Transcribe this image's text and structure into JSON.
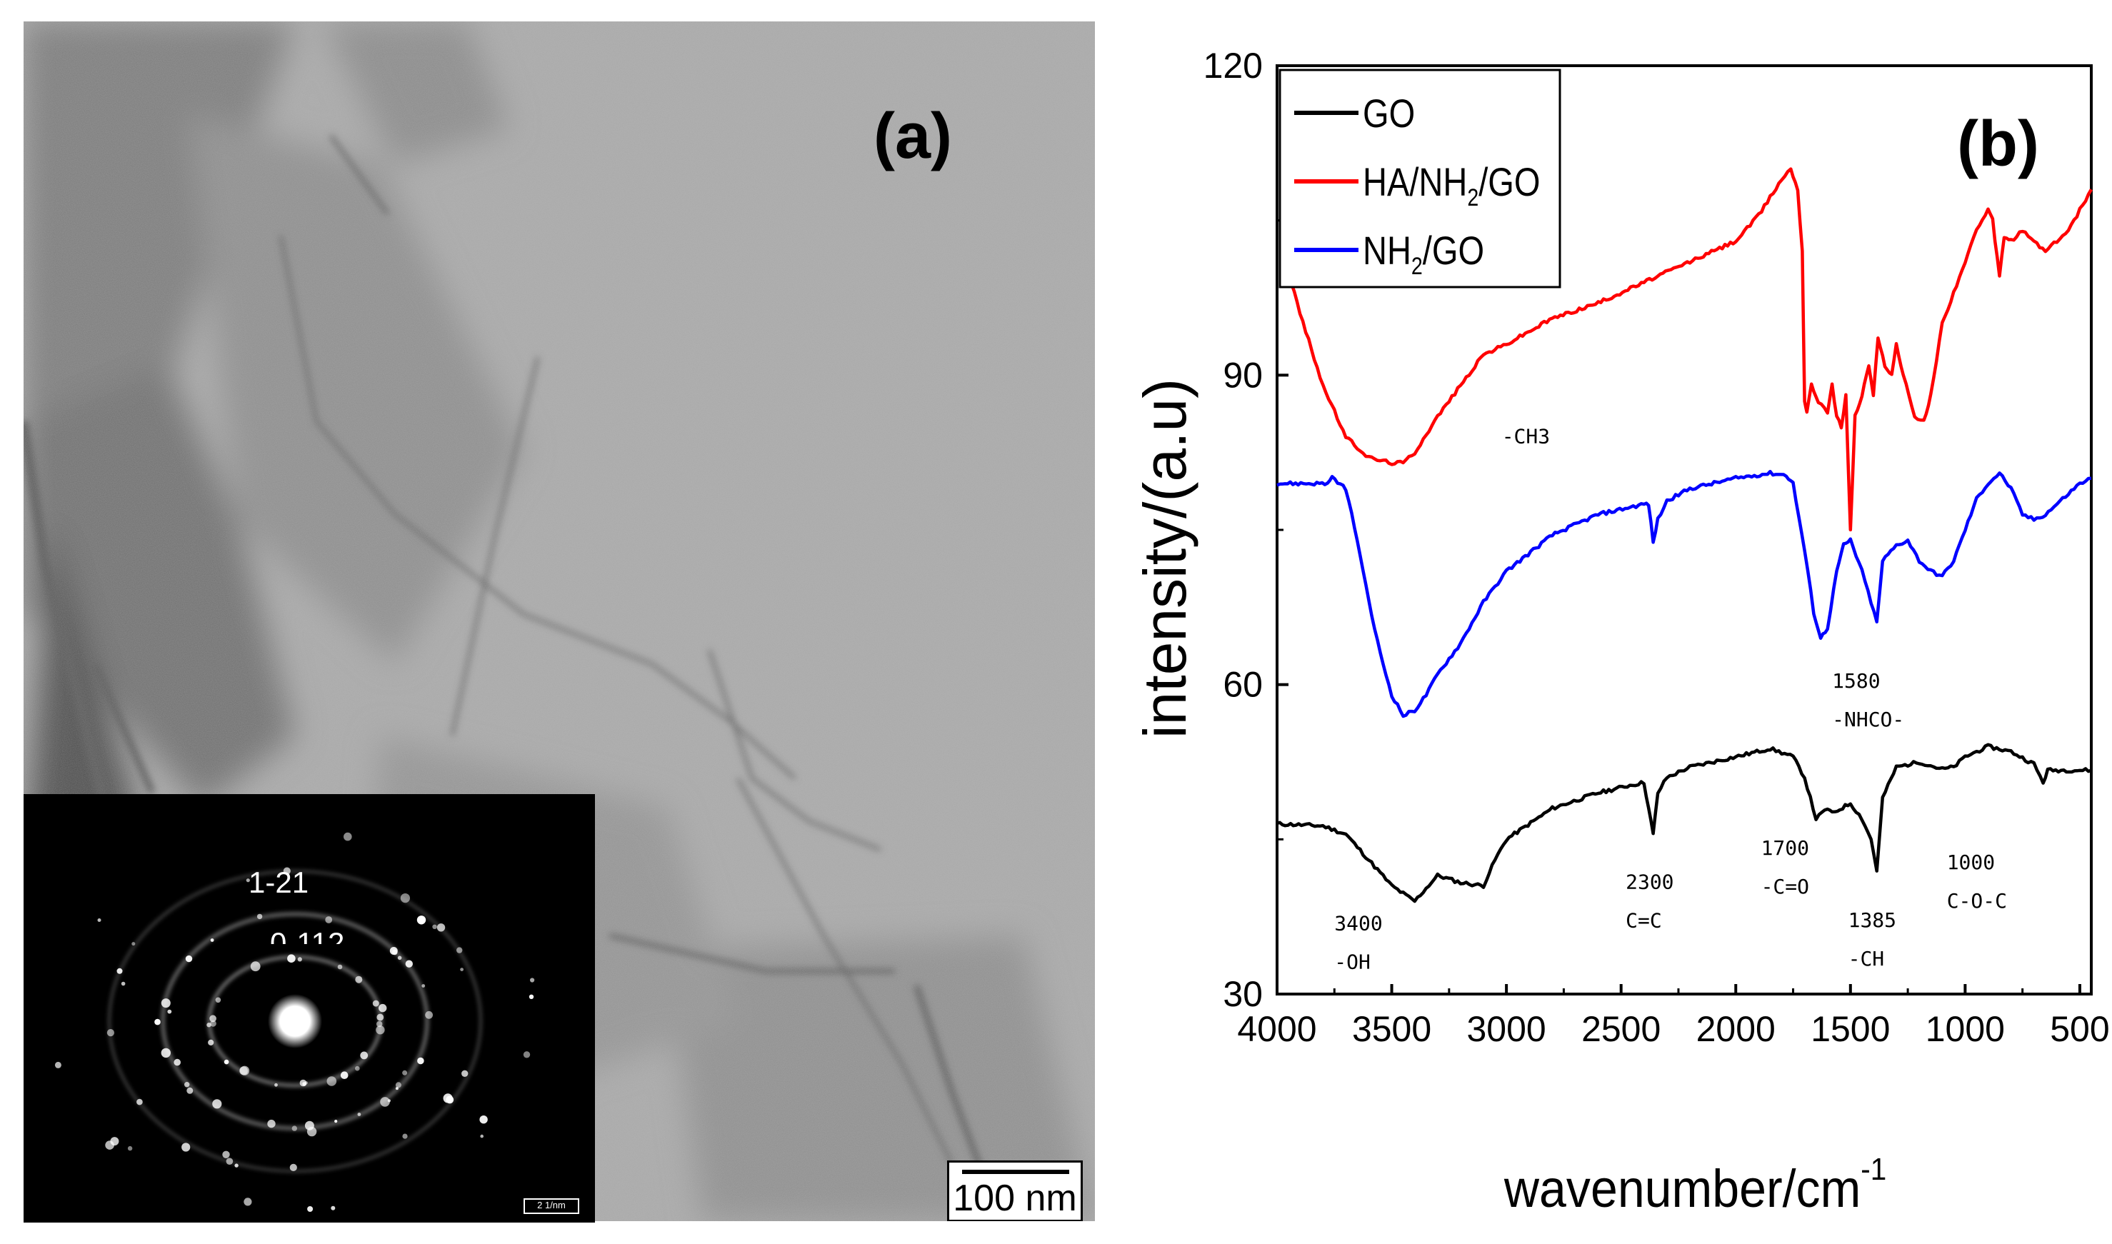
{
  "panel_a": {
    "label": "(a)",
    "scale_bar_text": "100 nm",
    "inset_labels": [
      "1-21",
      "0-112"
    ],
    "inset_scale_text": "2 1/nm"
  },
  "chart_data": {
    "type": "line",
    "panel_label": "(b)",
    "xlabel": "wavenumber/cm",
    "xlabel_superscript": "-1",
    "ylabel": "intensity/(a.u)",
    "xlim": [
      4000,
      450
    ],
    "ylim": [
      30,
      120
    ],
    "xticks": [
      4000,
      3500,
      3000,
      2500,
      2000,
      1500,
      1000,
      500
    ],
    "yticks": [
      30,
      60,
      90,
      120
    ],
    "legend": {
      "placement": "top-left",
      "entries": [
        {
          "name": "GO",
          "color": "#000000"
        },
        {
          "name": "HA/NH",
          "sub": "2",
          "suffix": "/GO",
          "color": "#ff0000"
        },
        {
          "name": "NH",
          "sub": "2",
          "suffix": "/GO",
          "color": "#0000ff"
        }
      ]
    },
    "series": [
      {
        "name": "GO",
        "color": "#000000",
        "points": [
          [
            4000,
            46.5
          ],
          [
            3800,
            46.3
          ],
          [
            3700,
            45.5
          ],
          [
            3600,
            43
          ],
          [
            3500,
            40.5
          ],
          [
            3400,
            39
          ],
          [
            3300,
            41.5
          ],
          [
            3200,
            40.8
          ],
          [
            3100,
            40.5
          ],
          [
            3050,
            43
          ],
          [
            3000,
            45
          ],
          [
            2800,
            48
          ],
          [
            2600,
            49.5
          ],
          [
            2450,
            50.3
          ],
          [
            2400,
            50.5
          ],
          [
            2380,
            48
          ],
          [
            2360,
            45.5
          ],
          [
            2340,
            49.5
          ],
          [
            2300,
            51
          ],
          [
            2200,
            52
          ],
          [
            2000,
            53
          ],
          [
            1850,
            53.8
          ],
          [
            1750,
            53
          ],
          [
            1700,
            51
          ],
          [
            1650,
            47
          ],
          [
            1600,
            48
          ],
          [
            1580,
            47.5
          ],
          [
            1500,
            48.5
          ],
          [
            1450,
            47
          ],
          [
            1410,
            45
          ],
          [
            1385,
            42
          ],
          [
            1360,
            49
          ],
          [
            1300,
            52
          ],
          [
            1200,
            52.5
          ],
          [
            1100,
            51.8
          ],
          [
            1050,
            52
          ],
          [
            1000,
            53
          ],
          [
            900,
            54
          ],
          [
            800,
            53.5
          ],
          [
            700,
            52.3
          ],
          [
            660,
            50.5
          ],
          [
            640,
            51.7
          ],
          [
            500,
            51.7
          ],
          [
            450,
            51.7
          ]
        ]
      },
      {
        "name": "HA/NH2/GO",
        "color": "#ff0000",
        "points": [
          [
            3950,
            100
          ],
          [
            3900,
            96
          ],
          [
            3800,
            89
          ],
          [
            3700,
            84
          ],
          [
            3600,
            82
          ],
          [
            3500,
            81.5
          ],
          [
            3450,
            81.5
          ],
          [
            3400,
            82.5
          ],
          [
            3300,
            86
          ],
          [
            3200,
            89
          ],
          [
            3100,
            92
          ],
          [
            3000,
            93
          ],
          [
            2800,
            95.5
          ],
          [
            2600,
            97
          ],
          [
            2400,
            99
          ],
          [
            2200,
            101
          ],
          [
            2000,
            103
          ],
          [
            1900,
            105.5
          ],
          [
            1800,
            109
          ],
          [
            1760,
            110
          ],
          [
            1730,
            108
          ],
          [
            1710,
            102
          ],
          [
            1700,
            87.5
          ],
          [
            1690,
            86.5
          ],
          [
            1670,
            89
          ],
          [
            1640,
            87.5
          ],
          [
            1600,
            86.5
          ],
          [
            1580,
            89
          ],
          [
            1560,
            86
          ],
          [
            1540,
            85
          ],
          [
            1520,
            88
          ],
          [
            1500,
            75
          ],
          [
            1480,
            86
          ],
          [
            1450,
            88
          ],
          [
            1420,
            91
          ],
          [
            1400,
            88
          ],
          [
            1380,
            93.5
          ],
          [
            1350,
            91
          ],
          [
            1320,
            90
          ],
          [
            1300,
            93
          ],
          [
            1270,
            90
          ],
          [
            1220,
            86
          ],
          [
            1180,
            85.5
          ],
          [
            1150,
            88
          ],
          [
            1100,
            95
          ],
          [
            1000,
            101
          ],
          [
            950,
            104
          ],
          [
            900,
            106
          ],
          [
            880,
            105
          ],
          [
            850,
            99.5
          ],
          [
            830,
            103.5
          ],
          [
            800,
            103
          ],
          [
            750,
            104
          ],
          [
            700,
            103
          ],
          [
            650,
            102
          ],
          [
            600,
            103
          ],
          [
            550,
            104
          ],
          [
            500,
            106
          ],
          [
            450,
            108
          ]
        ]
      },
      {
        "name": "NH2/GO",
        "color": "#0000ff",
        "points": [
          [
            4000,
            79.5
          ],
          [
            3850,
            79.5
          ],
          [
            3780,
            79.5
          ],
          [
            3760,
            80
          ],
          [
            3700,
            79
          ],
          [
            3650,
            74
          ],
          [
            3600,
            68
          ],
          [
            3550,
            63
          ],
          [
            3500,
            59
          ],
          [
            3450,
            57
          ],
          [
            3400,
            57.5
          ],
          [
            3350,
            59
          ],
          [
            3300,
            61
          ],
          [
            3200,
            64
          ],
          [
            3100,
            68
          ],
          [
            3000,
            71
          ],
          [
            2800,
            74.5
          ],
          [
            2600,
            76.5
          ],
          [
            2400,
            77.5
          ],
          [
            2380,
            77.5
          ],
          [
            2360,
            73.8
          ],
          [
            2340,
            76
          ],
          [
            2300,
            77.8
          ],
          [
            2200,
            79
          ],
          [
            2000,
            80
          ],
          [
            1850,
            80.5
          ],
          [
            1780,
            80.3
          ],
          [
            1750,
            79.5
          ],
          [
            1700,
            73
          ],
          [
            1660,
            67
          ],
          [
            1630,
            64.5
          ],
          [
            1600,
            65.5
          ],
          [
            1560,
            71
          ],
          [
            1530,
            73.5
          ],
          [
            1500,
            74
          ],
          [
            1450,
            71
          ],
          [
            1410,
            68
          ],
          [
            1385,
            66
          ],
          [
            1360,
            72
          ],
          [
            1300,
            73.5
          ],
          [
            1250,
            74
          ],
          [
            1200,
            72
          ],
          [
            1150,
            71
          ],
          [
            1100,
            70.5
          ],
          [
            1050,
            72
          ],
          [
            1000,
            75
          ],
          [
            950,
            78
          ],
          [
            900,
            79.5
          ],
          [
            850,
            80.5
          ],
          [
            800,
            79
          ],
          [
            750,
            76.5
          ],
          [
            700,
            76
          ],
          [
            650,
            76.5
          ],
          [
            600,
            77.5
          ],
          [
            550,
            78.5
          ],
          [
            500,
            79.5
          ],
          [
            450,
            80
          ]
        ]
      }
    ],
    "annotations": [
      {
        "lines": [
          "3400",
          "-OH"
        ],
        "x": 3750,
        "y": 36.2
      },
      {
        "lines": [
          "-CH3"
        ],
        "x": 3020,
        "y": 83.4
      },
      {
        "lines": [
          "2300",
          "C=C"
        ],
        "x": 2480,
        "y": 40.2
      },
      {
        "lines": [
          "1700",
          "-C=O"
        ],
        "x": 1890,
        "y": 43.5
      },
      {
        "lines": [
          "1580",
          "-NHCO-"
        ],
        "x": 1580,
        "y": 59.7
      },
      {
        "lines": [
          "1385",
          "-CH"
        ],
        "x": 1510,
        "y": 36.5
      },
      {
        "lines": [
          "1000",
          "C-O-C"
        ],
        "x": 1080,
        "y": 42.1
      }
    ]
  }
}
